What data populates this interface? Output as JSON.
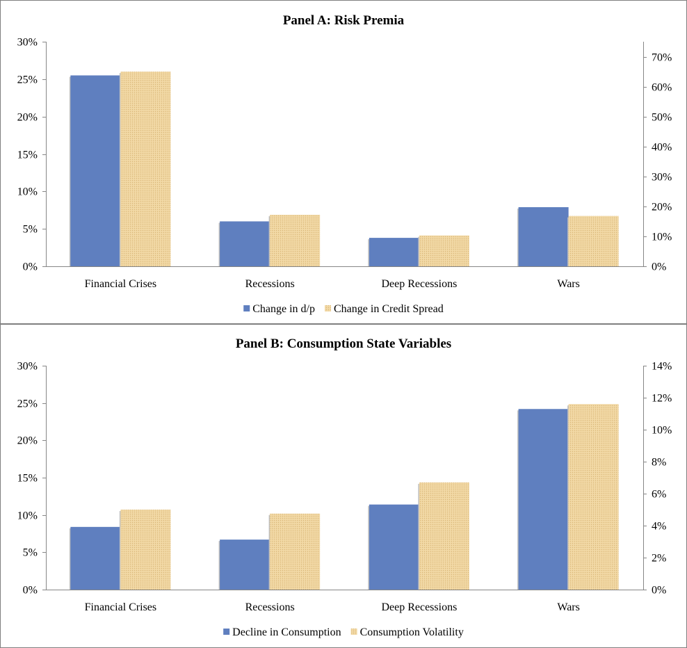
{
  "colors": {
    "series_primary": "#5f7fbf",
    "series_secondary": "#f2d9a6",
    "secondary_dots": "#d9b677"
  },
  "chart_data": [
    {
      "type": "bar",
      "title": "Panel A: Risk Premia",
      "categories": [
        "Financial Crises",
        "Recessions",
        "Deep Recessions",
        "Wars"
      ],
      "y_left": {
        "min": 0,
        "max": 0.3,
        "ticks": [
          0,
          0.05,
          0.1,
          0.15,
          0.2,
          0.25,
          0.3
        ],
        "tick_labels": [
          "0%",
          "5%",
          "10%",
          "15%",
          "20%",
          "25%",
          "30%"
        ]
      },
      "y_right": {
        "min": 0,
        "max": 0.75,
        "ticks": [
          0,
          0.1,
          0.2,
          0.3,
          0.4,
          0.5,
          0.6,
          0.7
        ],
        "tick_labels": [
          "0%",
          "10%",
          "20%",
          "30%",
          "40%",
          "50%",
          "60%",
          "70%"
        ]
      },
      "series": [
        {
          "name": "Change in d/p",
          "axis": "left",
          "values": [
            0.255,
            0.06,
            0.038,
            0.079
          ]
        },
        {
          "name": "Change in Credit Spread",
          "axis": "right",
          "values": [
            0.65,
            0.172,
            0.103,
            0.168
          ]
        }
      ],
      "legend": "bottom",
      "grid": false
    },
    {
      "type": "bar",
      "title": "Panel B: Consumption State Variables",
      "categories": [
        "Financial Crises",
        "Recessions",
        "Deep Recessions",
        "Wars"
      ],
      "y_left": {
        "min": 0,
        "max": 0.3,
        "ticks": [
          0,
          0.05,
          0.1,
          0.15,
          0.2,
          0.25,
          0.3
        ],
        "tick_labels": [
          "0%",
          "5%",
          "10%",
          "15%",
          "20%",
          "25%",
          "30%"
        ]
      },
      "y_right": {
        "min": 0,
        "max": 0.14,
        "ticks": [
          0,
          0.02,
          0.04,
          0.06,
          0.08,
          0.1,
          0.12,
          0.14
        ],
        "tick_labels": [
          "0%",
          "2%",
          "4%",
          "6%",
          "8%",
          "10%",
          "12%",
          "14%"
        ]
      },
      "series": [
        {
          "name": "Decline in Consumption",
          "axis": "left",
          "values": [
            0.084,
            0.067,
            0.114,
            0.242
          ]
        },
        {
          "name": "Consumption Volatility",
          "axis": "right",
          "values": [
            0.05,
            0.0475,
            0.067,
            0.116
          ]
        }
      ],
      "legend": "bottom",
      "grid": false
    }
  ]
}
